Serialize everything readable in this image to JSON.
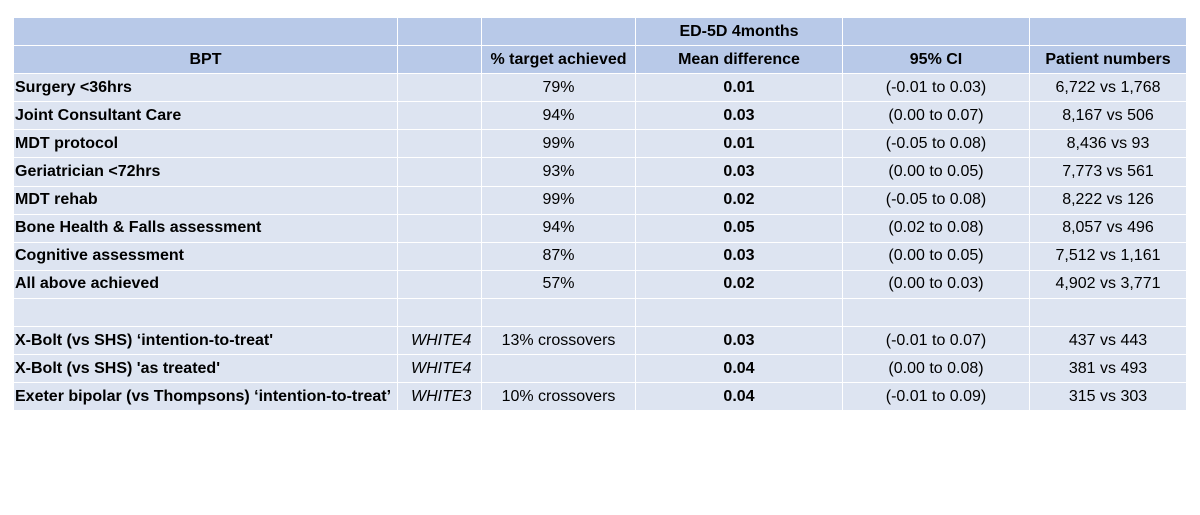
{
  "header": {
    "group_title": "ED-5D 4months",
    "columns": [
      "BPT",
      "",
      "% target achieved",
      "Mean difference",
      "95% CI",
      "Patient numbers"
    ]
  },
  "rows": [
    {
      "label": "Surgery <36hrs",
      "trial": "",
      "target": "79%",
      "mean_diff": "0.01",
      "ci": "(-0.01 to 0.03)",
      "patients": "6,722 vs 1,768"
    },
    {
      "label": "Joint Consultant Care",
      "trial": "",
      "target": "94%",
      "mean_diff": "0.03",
      "ci": "(0.00 to 0.07)",
      "patients": "8,167 vs 506"
    },
    {
      "label": "MDT protocol",
      "trial": "",
      "target": "99%",
      "mean_diff": "0.01",
      "ci": "(-0.05 to 0.08)",
      "patients": "8,436 vs 93"
    },
    {
      "label": "Geriatrician <72hrs",
      "trial": "",
      "target": "93%",
      "mean_diff": "0.03",
      "ci": "(0.00 to 0.05)",
      "patients": "7,773 vs 561"
    },
    {
      "label": "MDT rehab",
      "trial": "",
      "target": "99%",
      "mean_diff": "0.02",
      "ci": "(-0.05 to 0.08)",
      "patients": "8,222 vs 126"
    },
    {
      "label": "Bone Health & Falls assessment",
      "trial": "",
      "target": "94%",
      "mean_diff": "0.05",
      "ci": "(0.02 to 0.08)",
      "patients": "8,057 vs 496"
    },
    {
      "label": "Cognitive assessment",
      "trial": "",
      "target": "87%",
      "mean_diff": "0.03",
      "ci": "(0.00 to 0.05)",
      "patients": "7,512 vs 1,161"
    },
    {
      "label": "All above achieved",
      "trial": "",
      "target": "57%",
      "mean_diff": "0.02",
      "ci": "(0.00 to 0.03)",
      "patients": "4,902 vs 3,771"
    },
    {
      "label": "",
      "trial": "",
      "target": "",
      "mean_diff": "",
      "ci": "",
      "patients": ""
    },
    {
      "label": "X-Bolt (vs SHS) ‘intention-to-treat'",
      "trial": "WHITE4",
      "target": "13% crossovers",
      "mean_diff": "0.03",
      "ci": "(-0.01 to 0.07)",
      "patients": "437 vs 443"
    },
    {
      "label": "X-Bolt (vs SHS) 'as treated'",
      "trial": "WHITE4",
      "target": "",
      "mean_diff": "0.04",
      "ci": "(0.00 to 0.08)",
      "patients": "381 vs 493"
    },
    {
      "label": "Exeter bipolar (vs Thompsons) ‘intention-to-treat’",
      "trial": "WHITE3",
      "target": "10% crossovers",
      "mean_diff": "0.04",
      "ci": "(-0.01 to 0.09)",
      "patients": "315 vs 303"
    }
  ]
}
